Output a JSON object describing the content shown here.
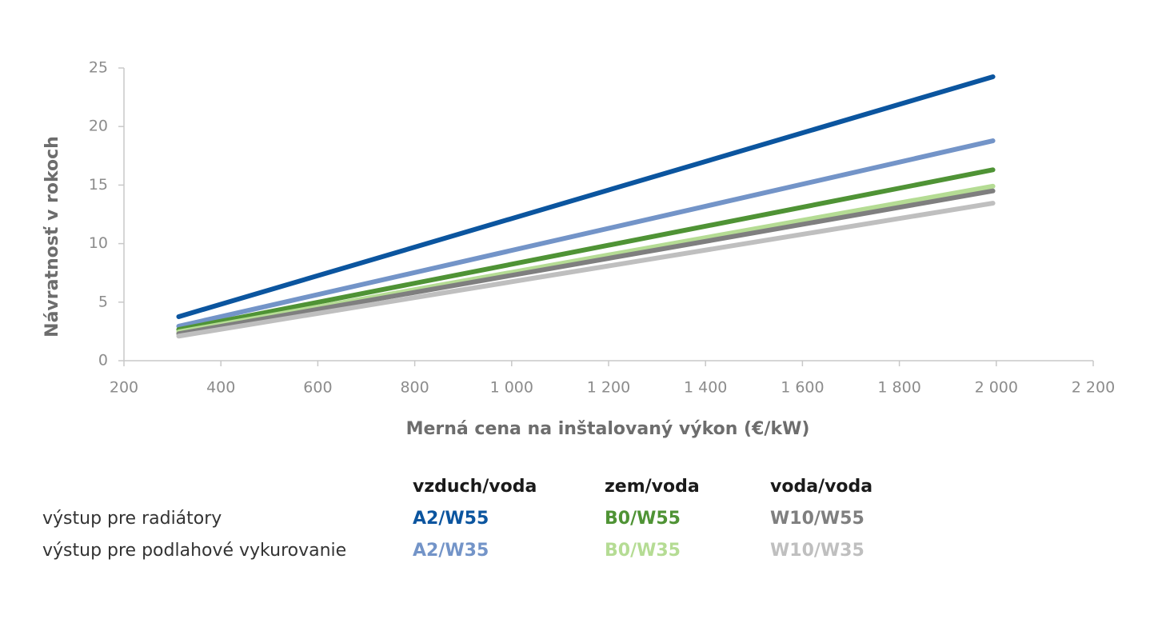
{
  "chart_data": {
    "type": "line",
    "x_label": "Merná cena na inštalovaný výkon (€/kW)",
    "y_label": "Návratnosť v rokoch",
    "x": [
      313,
      1993
    ],
    "series": [
      {
        "name": "A2/W55",
        "color": "#0b559f",
        "values": [
          3.76,
          24.25
        ]
      },
      {
        "name": "A2/W35",
        "color": "#7394c8",
        "values": [
          2.94,
          18.78
        ]
      },
      {
        "name": "B0/W55",
        "color": "#4f9335",
        "values": [
          2.66,
          16.3
        ]
      },
      {
        "name": "B0/W35",
        "color": "#b5dc94",
        "values": [
          2.46,
          14.9
        ]
      },
      {
        "name": "W10/W55",
        "color": "#7f7f7f",
        "values": [
          2.3,
          14.5
        ]
      },
      {
        "name": "W10/W35",
        "color": "#bfbfbf",
        "values": [
          2.1,
          13.45
        ]
      }
    ],
    "xlim": [
      200,
      2200
    ],
    "xticks": [
      200,
      400,
      600,
      800,
      {
        "value": 1000,
        "label": "1 000"
      },
      {
        "value": 1200,
        "label": "1 200"
      },
      {
        "value": 1400,
        "label": "1 400"
      },
      {
        "value": 1600,
        "label": "1 600"
      },
      {
        "value": 1800,
        "label": "1 800"
      },
      {
        "value": 2000,
        "label": "2 000"
      },
      {
        "value": 2200,
        "label": "2 200"
      }
    ],
    "ylim": [
      0,
      25
    ],
    "yticks": [
      0,
      5,
      10,
      15,
      20,
      25
    ],
    "legend_columns": [
      "vzduch/voda",
      "zem/voda",
      "voda/voda"
    ],
    "legend_rows": [
      "výstup pre radiátory",
      "výstup pre podlahové vykurovanie"
    ]
  }
}
